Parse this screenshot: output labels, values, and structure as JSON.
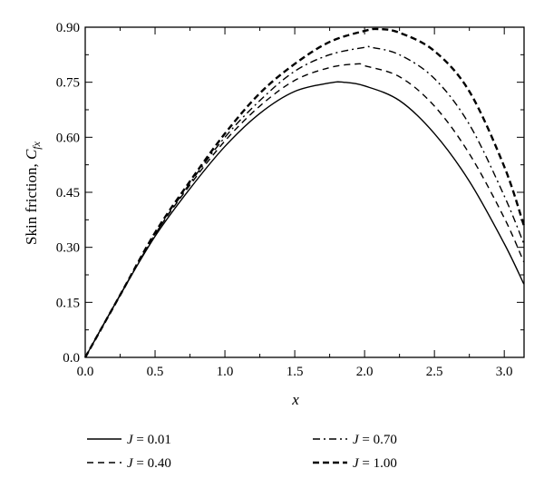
{
  "chart_data": {
    "type": "line",
    "title": "",
    "xlabel": "x",
    "ylabel_main": "Skin friction, ",
    "ylabel_symbol": "C",
    "ylabel_subscript": "fx",
    "xlim": [
      0,
      3.1416
    ],
    "ylim": [
      0,
      0.9
    ],
    "xticks": [
      0,
      0.5,
      1.0,
      1.5,
      2.0,
      2.5,
      3.0
    ],
    "xtick_labels": [
      "0.0",
      "0.5",
      "1.0",
      "1.5",
      "2.0",
      "2.5",
      "3.0"
    ],
    "yticks": [
      0,
      0.15,
      0.3,
      0.45,
      0.6,
      0.75,
      0.9
    ],
    "ytick_labels": [
      "0.0",
      "0.15",
      "0.30",
      "0.45",
      "0.60",
      "0.75",
      "0.90"
    ],
    "grid": false,
    "legend_position": "bottom",
    "series": [
      {
        "name": "J = 0.01",
        "style": "solid",
        "x": [
          0,
          0.25,
          0.5,
          0.75,
          1.0,
          1.25,
          1.5,
          1.75,
          1.85,
          2.0,
          2.25,
          2.5,
          2.75,
          3.0,
          3.14
        ],
        "y": [
          0,
          0.17,
          0.33,
          0.46,
          0.575,
          0.665,
          0.725,
          0.748,
          0.75,
          0.74,
          0.7,
          0.61,
          0.48,
          0.31,
          0.2
        ]
      },
      {
        "name": "J = 0.40",
        "style": "dashed",
        "x": [
          0,
          0.25,
          0.5,
          0.75,
          1.0,
          1.25,
          1.5,
          1.75,
          1.95,
          2.0,
          2.25,
          2.5,
          2.75,
          3.0,
          3.14
        ],
        "y": [
          0,
          0.17,
          0.335,
          0.47,
          0.59,
          0.685,
          0.755,
          0.79,
          0.8,
          0.795,
          0.765,
          0.685,
          0.555,
          0.38,
          0.26
        ]
      },
      {
        "name": "J = 0.70",
        "style": "dashdot",
        "x": [
          0,
          0.25,
          0.5,
          0.75,
          1.0,
          1.25,
          1.5,
          1.75,
          2.0,
          2.05,
          2.25,
          2.5,
          2.75,
          3.0,
          3.14
        ],
        "y": [
          0,
          0.17,
          0.335,
          0.475,
          0.6,
          0.7,
          0.78,
          0.825,
          0.845,
          0.845,
          0.825,
          0.76,
          0.635,
          0.44,
          0.31
        ]
      },
      {
        "name": "J = 1.00",
        "style": "bold-dashed",
        "x": [
          0,
          0.25,
          0.5,
          0.75,
          1.0,
          1.25,
          1.5,
          1.75,
          2.0,
          2.1,
          2.25,
          2.5,
          2.75,
          3.0,
          3.14
        ],
        "y": [
          0,
          0.17,
          0.34,
          0.48,
          0.61,
          0.72,
          0.8,
          0.86,
          0.89,
          0.895,
          0.885,
          0.835,
          0.725,
          0.52,
          0.36
        ]
      }
    ],
    "legend": {
      "J_symbol": "J",
      "entries": [
        {
          "value_text": " = 0.01",
          "style": "solid"
        },
        {
          "value_text": " = 0.40",
          "style": "dashed"
        },
        {
          "value_text": " = 0.70",
          "style": "dashdot"
        },
        {
          "value_text": " = 1.00",
          "style": "bold-dashed"
        }
      ]
    }
  }
}
